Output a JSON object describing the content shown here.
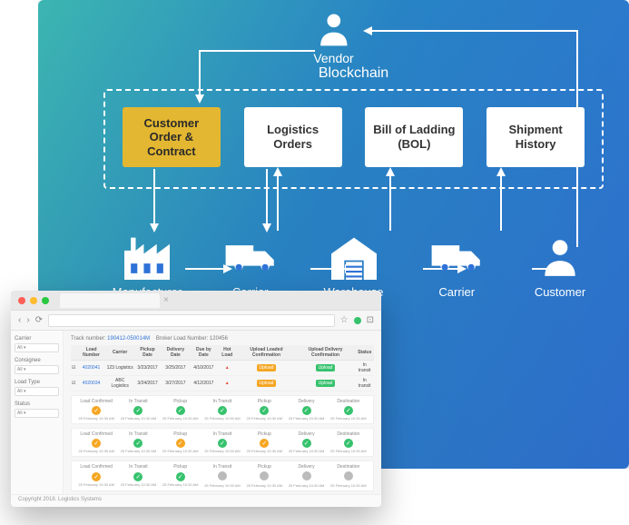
{
  "diagram": {
    "type": "flowchart",
    "background_gradient": [
      "#3dbbb4",
      "#2886c9",
      "#2e72d8"
    ],
    "vendor": {
      "label": "Vendor",
      "icon": "person-icon",
      "color": "#ffffff"
    },
    "blockchain": {
      "title": "Blockchain",
      "border_color": "#ffffff",
      "border_style": "dashed",
      "cards": [
        {
          "id": "customer-order",
          "label": "Customer Order & Contract",
          "bg": "#e3b731",
          "highlight": true
        },
        {
          "id": "logistics-orders",
          "label": "Logistics Orders",
          "bg": "#ffffff"
        },
        {
          "id": "bol",
          "label": "Bill of Ladding (BOL)",
          "bg": "#ffffff"
        },
        {
          "id": "shipment-history",
          "label": "Shipment History",
          "bg": "#ffffff"
        }
      ]
    },
    "entities": [
      {
        "id": "manufacturer",
        "label": "Manufacturer",
        "icon": "factory-icon"
      },
      {
        "id": "carrier1",
        "label": "Carrier",
        "icon": "truck-icon"
      },
      {
        "id": "warehouse",
        "label": "Warehouse",
        "icon": "warehouse-icon"
      },
      {
        "id": "carrier2",
        "label": "Carrier",
        "icon": "truck-icon"
      },
      {
        "id": "customer",
        "label": "Customer",
        "icon": "person-icon"
      }
    ],
    "arrow_color": "#ffffff",
    "text_color": "#ffffff",
    "title_fontsize": 16,
    "card_fontsize": 13,
    "entity_fontsize": 13
  },
  "browser": {
    "dots": [
      "#ff5f57",
      "#febc2e",
      "#28c840"
    ],
    "toolbar_icons": [
      "‹",
      "›",
      "⟳"
    ],
    "star_icon": "☆",
    "green_dot": "#37c26d",
    "sidebar": {
      "groups": [
        {
          "label": "Carrier",
          "value": "All"
        },
        {
          "label": "Consignee",
          "value": "All"
        },
        {
          "label": "Load Type",
          "value": "All"
        },
        {
          "label": "Status",
          "value": "All"
        }
      ]
    },
    "meta": {
      "track_number_label": "Track number:",
      "track_number": "190412-050014M",
      "broker_label": "Broker Load Number:",
      "broker_number": "120456"
    },
    "table": {
      "columns": [
        "",
        "Load Number",
        "Carrier",
        "Pickup Date",
        "Delivery Date",
        "Due by Date",
        "Hot Load",
        "Upload Loaded Confirmation",
        "Upload Delivery Confirmation",
        "Status"
      ],
      "rows": [
        {
          "check": true,
          "load": "4020041",
          "carrier": "123 Logistics",
          "pickup": "3/23/2017",
          "delivery": "3/25/2017",
          "dueby": "4/10/2017",
          "hot": "red",
          "btn1": "orange",
          "btn2": "green",
          "status": "In transit"
        },
        {
          "check": true,
          "load": "4020034",
          "carrier": "ABC Logistics",
          "pickup": "3/24/2017",
          "delivery": "3/27/2017",
          "dueby": "4/12/2017",
          "hot": "red",
          "btn1": "orange",
          "btn2": "green",
          "status": "In transit"
        }
      ]
    },
    "status_columns": [
      "Load Confirmed",
      "In Transit",
      "Pickup",
      "In Transit",
      "Pickup",
      "Delivery",
      "Destination"
    ],
    "status_date": "25 February 10:30 AM",
    "status_cards": [
      {
        "steps": [
          {
            "color": "#f5a623",
            "done": true
          },
          {
            "color": "#37c26d",
            "done": true
          },
          {
            "color": "#37c26d",
            "done": true
          },
          {
            "color": "#37c26d",
            "done": true
          },
          {
            "color": "#37c26d",
            "done": true
          },
          {
            "color": "#37c26d",
            "done": true
          },
          {
            "color": "#37c26d",
            "done": true
          }
        ]
      },
      {
        "steps": [
          {
            "color": "#f5a623",
            "done": true
          },
          {
            "color": "#37c26d",
            "done": true
          },
          {
            "color": "#f5a623",
            "done": true
          },
          {
            "color": "#37c26d",
            "done": true
          },
          {
            "color": "#f5a623",
            "done": true
          },
          {
            "color": "#37c26d",
            "done": true
          },
          {
            "color": "#37c26d",
            "done": true
          }
        ]
      },
      {
        "steps": [
          {
            "color": "#f5a623",
            "done": true
          },
          {
            "color": "#37c26d",
            "done": true
          },
          {
            "color": "#37c26d",
            "done": true
          },
          {
            "color": "#bbbbbb",
            "done": false
          },
          {
            "color": "#bbbbbb",
            "done": false
          },
          {
            "color": "#bbbbbb",
            "done": false
          },
          {
            "color": "#bbbbbb",
            "done": false
          }
        ]
      }
    ],
    "footer": "Copyright 2018. Logistics Systems"
  }
}
